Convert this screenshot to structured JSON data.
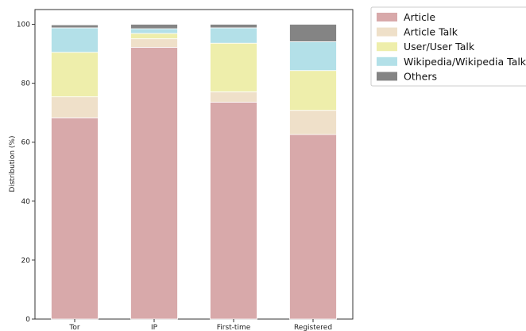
{
  "chart_data": {
    "type": "bar",
    "stacked": true,
    "title": "",
    "xlabel": "",
    "ylabel": "Distribution (%)",
    "ylim": [
      0,
      105
    ],
    "yticks": [
      0,
      20,
      40,
      60,
      80,
      100
    ],
    "grid": false,
    "legend_position": "outside-top-right",
    "categories": [
      "Tor",
      "IP",
      "First-time",
      "Registered"
    ],
    "series": [
      {
        "name": "Article",
        "color": "#d8a9aa",
        "values": [
          68.3,
          92.2,
          73.6,
          62.6
        ]
      },
      {
        "name": "Article Talk",
        "color": "#efe0c9",
        "values": [
          7.1,
          2.9,
          3.5,
          8.2
        ]
      },
      {
        "name": "User/User Talk",
        "color": "#eeeeab",
        "values": [
          15.1,
          1.8,
          16.5,
          13.5
        ]
      },
      {
        "name": "Wikipedia/Wikipedia Talk",
        "color": "#b3e0e8",
        "values": [
          8.3,
          1.6,
          5.2,
          9.8
        ]
      },
      {
        "name": "Others",
        "color": "#848484",
        "values": [
          1.0,
          1.5,
          1.2,
          5.9
        ]
      }
    ]
  }
}
